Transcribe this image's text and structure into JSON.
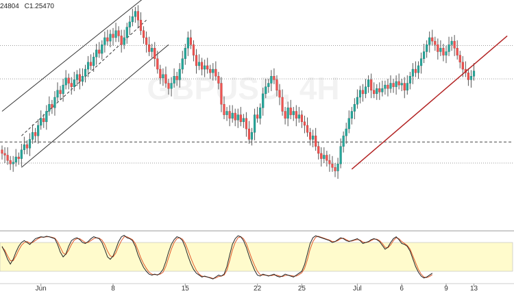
{
  "header": {
    "ohlc": [
      "24804",
      "C1.25470"
    ]
  },
  "watermark": "GBPUSD, 4H",
  "colors": {
    "up": "#26a69a",
    "down": "#ef5350",
    "wick": "#555555",
    "channel": "#333333",
    "trendline": "#b22222",
    "stoch_k": "#222222",
    "stoch_d": "#e05a2b",
    "stoch_band": "#fffbcc"
  },
  "chart_data": {
    "type": "candlestick",
    "price_ylim": [
      0,
      100
    ],
    "stoch_ylim": [
      0,
      100
    ],
    "x_ticks": [
      {
        "label": "Jun",
        "idx": 14
      },
      {
        "label": "8",
        "idx": 40
      },
      {
        "label": "15",
        "idx": 66
      },
      {
        "label": "22",
        "idx": 92
      },
      {
        "label": "25",
        "idx": 108
      },
      {
        "label": "Jul",
        "idx": 128
      },
      {
        "label": "6",
        "idx": 144
      },
      {
        "label": "9",
        "idx": 160
      },
      {
        "label": "13",
        "idx": 170
      }
    ],
    "support_levels": [
      {
        "value": 60.5,
        "style": "dotted"
      },
      {
        "value": 79.5,
        "style": "dotted"
      },
      {
        "value": 24.5,
        "style": "dashed"
      },
      {
        "value": 12.5,
        "style": "dotted"
      }
    ],
    "channel": {
      "upper": [
        {
          "i": 0,
          "v": 42
        },
        {
          "i": 72,
          "v": 133
        }
      ],
      "lower": [
        {
          "i": 7,
          "v": 10
        },
        {
          "i": 60,
          "v": 80
        }
      ],
      "dashed": [
        {
          "i": 7,
          "v": 28
        },
        {
          "i": 52,
          "v": 94
        }
      ]
    },
    "trendline": [
      {
        "i": 126,
        "v": 9
      },
      {
        "i": 182,
        "v": 85
      }
    ],
    "candles": [
      {
        "o": 20,
        "c": 18
      },
      {
        "o": 18,
        "c": 17
      },
      {
        "o": 17,
        "c": 14
      },
      {
        "o": 14,
        "c": 12
      },
      {
        "o": 12,
        "c": 13
      },
      {
        "o": 13,
        "c": 16
      },
      {
        "o": 16,
        "c": 15
      },
      {
        "o": 15,
        "c": 20
      },
      {
        "o": 20,
        "c": 23
      },
      {
        "o": 23,
        "c": 21
      },
      {
        "o": 21,
        "c": 26
      },
      {
        "o": 26,
        "c": 30
      },
      {
        "o": 30,
        "c": 28
      },
      {
        "o": 28,
        "c": 34
      },
      {
        "o": 34,
        "c": 38
      },
      {
        "o": 38,
        "c": 36
      },
      {
        "o": 36,
        "c": 42
      },
      {
        "o": 42,
        "c": 46
      },
      {
        "o": 46,
        "c": 44
      },
      {
        "o": 44,
        "c": 50
      },
      {
        "o": 50,
        "c": 54
      },
      {
        "o": 54,
        "c": 52
      },
      {
        "o": 52,
        "c": 57
      },
      {
        "o": 57,
        "c": 61
      },
      {
        "o": 61,
        "c": 58
      },
      {
        "o": 58,
        "c": 56
      },
      {
        "o": 56,
        "c": 60
      },
      {
        "o": 60,
        "c": 63
      },
      {
        "o": 63,
        "c": 59
      },
      {
        "o": 59,
        "c": 62
      },
      {
        "o": 62,
        "c": 66
      },
      {
        "o": 66,
        "c": 70
      },
      {
        "o": 70,
        "c": 68
      },
      {
        "o": 68,
        "c": 73
      },
      {
        "o": 73,
        "c": 77
      },
      {
        "o": 77,
        "c": 75
      },
      {
        "o": 75,
        "c": 80
      },
      {
        "o": 80,
        "c": 84
      },
      {
        "o": 84,
        "c": 82
      },
      {
        "o": 82,
        "c": 86
      },
      {
        "o": 86,
        "c": 84
      },
      {
        "o": 84,
        "c": 88
      },
      {
        "o": 88,
        "c": 85
      },
      {
        "o": 85,
        "c": 80
      },
      {
        "o": 80,
        "c": 84
      },
      {
        "o": 84,
        "c": 90
      },
      {
        "o": 90,
        "c": 93
      },
      {
        "o": 93,
        "c": 96
      },
      {
        "o": 96,
        "c": 99
      },
      {
        "o": 99,
        "c": 94
      },
      {
        "o": 94,
        "c": 88
      },
      {
        "o": 88,
        "c": 84
      },
      {
        "o": 84,
        "c": 80
      },
      {
        "o": 80,
        "c": 76
      },
      {
        "o": 76,
        "c": 78
      },
      {
        "o": 78,
        "c": 72
      },
      {
        "o": 72,
        "c": 66
      },
      {
        "o": 66,
        "c": 61
      },
      {
        "o": 61,
        "c": 63
      },
      {
        "o": 63,
        "c": 58
      },
      {
        "o": 58,
        "c": 55
      },
      {
        "o": 55,
        "c": 58
      },
      {
        "o": 58,
        "c": 62
      },
      {
        "o": 62,
        "c": 60
      },
      {
        "o": 60,
        "c": 66
      },
      {
        "o": 66,
        "c": 72
      },
      {
        "o": 72,
        "c": 78
      },
      {
        "o": 78,
        "c": 84
      },
      {
        "o": 84,
        "c": 80
      },
      {
        "o": 80,
        "c": 74
      },
      {
        "o": 74,
        "c": 68
      },
      {
        "o": 68,
        "c": 70
      },
      {
        "o": 70,
        "c": 66
      },
      {
        "o": 66,
        "c": 68
      },
      {
        "o": 68,
        "c": 66
      },
      {
        "o": 66,
        "c": 64
      },
      {
        "o": 64,
        "c": 66
      },
      {
        "o": 66,
        "c": 62
      },
      {
        "o": 62,
        "c": 58
      },
      {
        "o": 58,
        "c": 46
      },
      {
        "o": 46,
        "c": 40
      },
      {
        "o": 40,
        "c": 42
      },
      {
        "o": 42,
        "c": 38
      },
      {
        "o": 38,
        "c": 41
      },
      {
        "o": 41,
        "c": 37
      },
      {
        "o": 37,
        "c": 40
      },
      {
        "o": 40,
        "c": 36
      },
      {
        "o": 36,
        "c": 38
      },
      {
        "o": 38,
        "c": 32
      },
      {
        "o": 32,
        "c": 26
      },
      {
        "o": 26,
        "c": 30
      },
      {
        "o": 30,
        "c": 40
      },
      {
        "o": 40,
        "c": 38
      },
      {
        "o": 38,
        "c": 44
      },
      {
        "o": 44,
        "c": 52
      },
      {
        "o": 52,
        "c": 56
      },
      {
        "o": 56,
        "c": 58
      },
      {
        "o": 58,
        "c": 62
      },
      {
        "o": 62,
        "c": 60
      },
      {
        "o": 60,
        "c": 54
      },
      {
        "o": 54,
        "c": 50
      },
      {
        "o": 50,
        "c": 42
      },
      {
        "o": 42,
        "c": 38
      },
      {
        "o": 38,
        "c": 44
      },
      {
        "o": 44,
        "c": 40
      },
      {
        "o": 40,
        "c": 42
      },
      {
        "o": 42,
        "c": 38
      },
      {
        "o": 38,
        "c": 40
      },
      {
        "o": 40,
        "c": 36
      },
      {
        "o": 36,
        "c": 34
      },
      {
        "o": 34,
        "c": 30
      },
      {
        "o": 30,
        "c": 26
      },
      {
        "o": 26,
        "c": 28
      },
      {
        "o": 28,
        "c": 22
      },
      {
        "o": 22,
        "c": 18
      },
      {
        "o": 18,
        "c": 15
      },
      {
        "o": 15,
        "c": 17
      },
      {
        "o": 17,
        "c": 14
      },
      {
        "o": 14,
        "c": 12
      },
      {
        "o": 12,
        "c": 10
      },
      {
        "o": 10,
        "c": 8
      },
      {
        "o": 8,
        "c": 12
      },
      {
        "o": 12,
        "c": 22
      },
      {
        "o": 22,
        "c": 28
      },
      {
        "o": 28,
        "c": 32
      },
      {
        "o": 32,
        "c": 38
      },
      {
        "o": 38,
        "c": 42
      },
      {
        "o": 42,
        "c": 46
      },
      {
        "o": 46,
        "c": 50
      },
      {
        "o": 50,
        "c": 54
      },
      {
        "o": 54,
        "c": 52
      },
      {
        "o": 52,
        "c": 56
      },
      {
        "o": 56,
        "c": 60
      },
      {
        "o": 60,
        "c": 54
      },
      {
        "o": 54,
        "c": 52
      },
      {
        "o": 52,
        "c": 55
      },
      {
        "o": 55,
        "c": 53
      },
      {
        "o": 53,
        "c": 55
      },
      {
        "o": 55,
        "c": 57
      },
      {
        "o": 57,
        "c": 55
      },
      {
        "o": 55,
        "c": 58
      },
      {
        "o": 58,
        "c": 56
      },
      {
        "o": 56,
        "c": 59
      },
      {
        "o": 59,
        "c": 57
      },
      {
        "o": 57,
        "c": 58
      },
      {
        "o": 58,
        "c": 54
      },
      {
        "o": 54,
        "c": 58
      },
      {
        "o": 58,
        "c": 62
      },
      {
        "o": 62,
        "c": 66
      },
      {
        "o": 66,
        "c": 64
      },
      {
        "o": 64,
        "c": 68
      },
      {
        "o": 68,
        "c": 72
      },
      {
        "o": 72,
        "c": 76
      },
      {
        "o": 76,
        "c": 80
      },
      {
        "o": 80,
        "c": 84
      },
      {
        "o": 84,
        "c": 82
      },
      {
        "o": 82,
        "c": 80
      },
      {
        "o": 80,
        "c": 76
      },
      {
        "o": 76,
        "c": 78
      },
      {
        "o": 78,
        "c": 74
      },
      {
        "o": 74,
        "c": 76
      },
      {
        "o": 76,
        "c": 80
      },
      {
        "o": 80,
        "c": 82
      },
      {
        "o": 82,
        "c": 78
      },
      {
        "o": 78,
        "c": 74
      },
      {
        "o": 74,
        "c": 70
      },
      {
        "o": 70,
        "c": 66
      },
      {
        "o": 66,
        "c": 64
      },
      {
        "o": 64,
        "c": 60
      },
      {
        "o": 60,
        "c": 62
      },
      {
        "o": 62,
        "c": 65
      }
    ],
    "stoch_k": [
      72,
      60,
      45,
      35,
      45,
      60,
      72,
      80,
      84,
      80,
      76,
      82,
      88,
      90,
      92,
      91,
      93,
      92,
      90,
      88,
      76,
      60,
      50,
      56,
      72,
      84,
      88,
      90,
      86,
      80,
      78,
      82,
      88,
      92,
      90,
      88,
      80,
      66,
      50,
      45,
      52,
      66,
      82,
      92,
      95,
      90,
      88,
      84,
      72,
      54,
      40,
      28,
      20,
      14,
      12,
      14,
      12,
      16,
      24,
      40,
      60,
      76,
      86,
      92,
      90,
      84,
      70,
      52,
      36,
      24,
      16,
      12,
      8,
      10,
      8,
      6,
      4,
      8,
      12,
      10,
      14,
      30,
      54,
      76,
      88,
      94,
      92,
      84,
      70,
      52,
      36,
      22,
      12,
      10,
      14,
      12,
      10,
      12,
      14,
      10,
      8,
      10,
      14,
      12,
      10,
      8,
      12,
      16,
      20,
      34,
      56,
      78,
      90,
      94,
      92,
      90,
      88,
      86,
      84,
      80,
      82,
      86,
      90,
      88,
      84,
      82,
      84,
      86,
      88,
      84,
      78,
      80,
      82,
      86,
      88,
      86,
      82,
      74,
      66,
      70,
      80,
      88,
      92,
      86,
      78,
      76,
      72,
      62,
      46,
      30,
      18,
      10,
      6,
      8,
      12,
      16
    ],
    "stoch_d": [
      70,
      64,
      52,
      42,
      42,
      52,
      64,
      74,
      80,
      82,
      79,
      80,
      84,
      88,
      91,
      91,
      92,
      92,
      91,
      89,
      82,
      70,
      58,
      55,
      64,
      76,
      85,
      88,
      88,
      84,
      80,
      80,
      84,
      88,
      90,
      89,
      85,
      76,
      62,
      52,
      50,
      58,
      72,
      84,
      92,
      92,
      89,
      86,
      78,
      64,
      48,
      36,
      26,
      18,
      14,
      13,
      13,
      14,
      18,
      30,
      48,
      66,
      80,
      88,
      90,
      87,
      78,
      64,
      48,
      34,
      22,
      14,
      10,
      9,
      8,
      7,
      5,
      6,
      9,
      10,
      12,
      22,
      42,
      64,
      80,
      90,
      92,
      88,
      78,
      62,
      46,
      32,
      20,
      13,
      12,
      12,
      11,
      11,
      12,
      12,
      10,
      9,
      11,
      12,
      11,
      10,
      10,
      13,
      17,
      26,
      44,
      66,
      82,
      91,
      93,
      91,
      89,
      87,
      85,
      82,
      82,
      84,
      88,
      89,
      86,
      83,
      83,
      85,
      86,
      85,
      81,
      80,
      81,
      84,
      87,
      87,
      84,
      78,
      70,
      69,
      75,
      84,
      90,
      88,
      82,
      78,
      74,
      66,
      52,
      38,
      24,
      14,
      8,
      7,
      9,
      13
    ]
  }
}
